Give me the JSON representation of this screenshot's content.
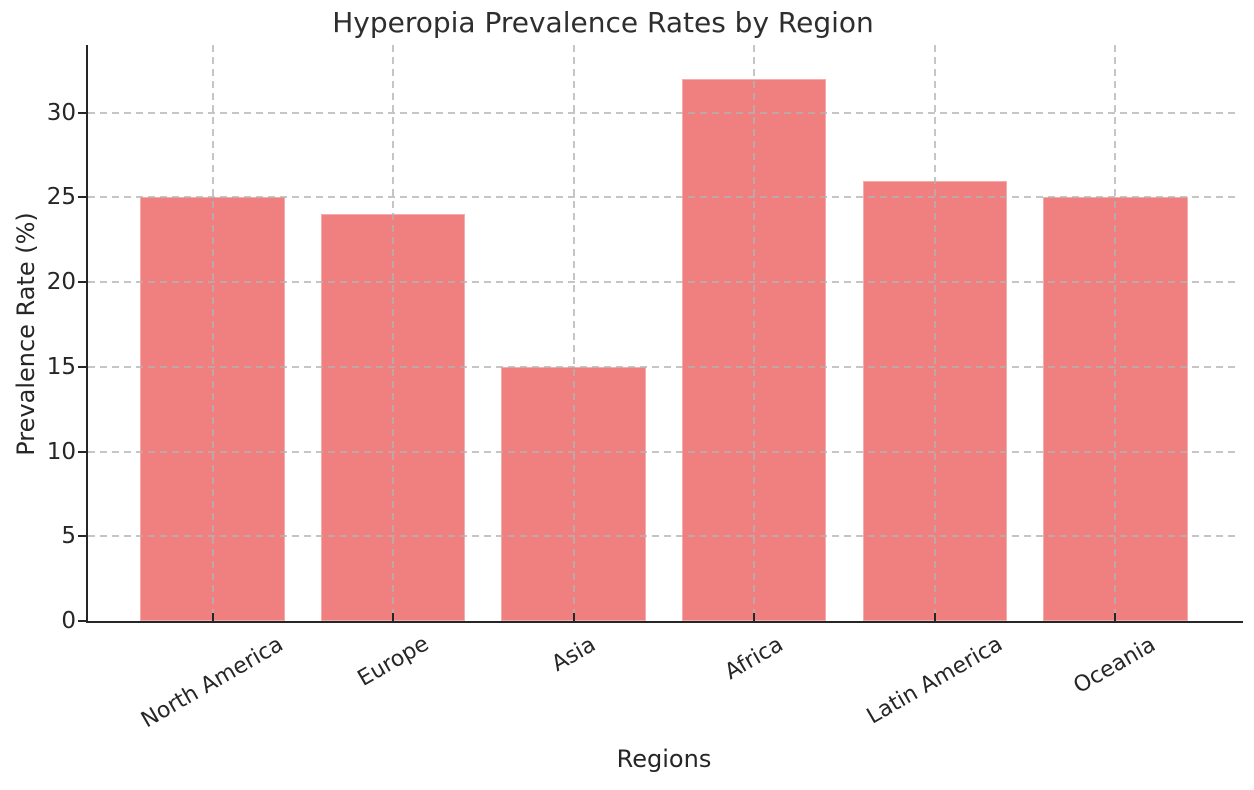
{
  "chart_data": {
    "type": "bar",
    "title": "Hyperopia Prevalence Rates by Region",
    "xlabel": "Regions",
    "ylabel": "Prevalence Rate (%)",
    "categories": [
      "North America",
      "Europe",
      "Asia",
      "Africa",
      "Latin America",
      "Oceania"
    ],
    "values": [
      25,
      24,
      15,
      32,
      26,
      25
    ],
    "yticks": [
      0,
      5,
      10,
      15,
      20,
      25,
      30
    ],
    "ylim": [
      0,
      34
    ],
    "bar_width_fraction": 0.8,
    "x_margin_units": 0.69,
    "x_tick_label_rotation_deg": 30,
    "grid": true,
    "grid_style": "dashed",
    "grid_above_bars": true,
    "legend": "none",
    "colors": {
      "bar_fill": "#F08080",
      "grid_line": "#C9C9C9",
      "axis_line": "#262626",
      "text": "#262626",
      "background": "#FFFFFF"
    }
  }
}
